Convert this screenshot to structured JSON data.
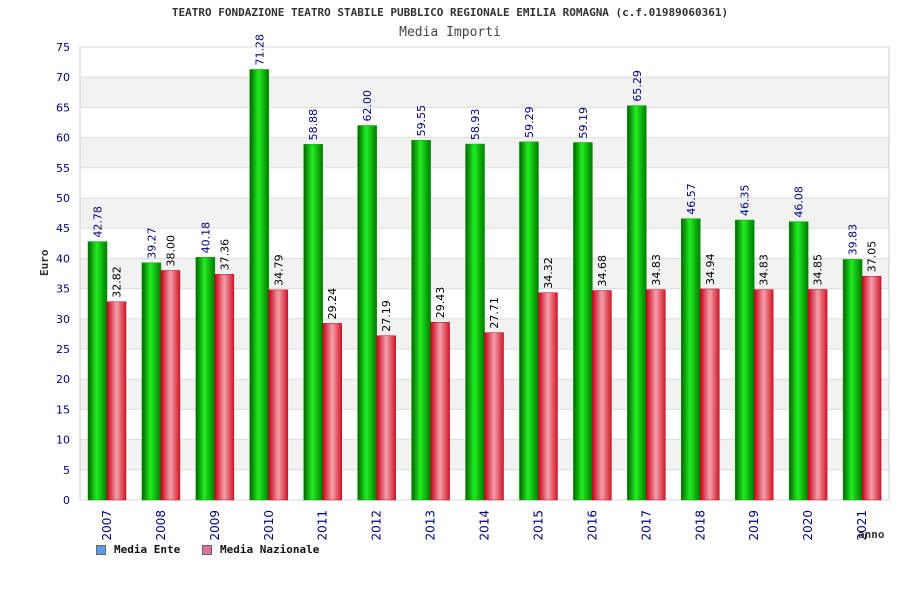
{
  "header": {
    "title": "TEATRO FONDAZIONE TEATRO STABILE PUBBLICO REGIONALE EMILIA ROMAGNA (c.f.01989060361)",
    "subtitle": "Media Importi"
  },
  "colors": {
    "ente": "#00c000",
    "nazionale": "#e8303c",
    "axis_text": "#000080",
    "legend_ente": "#5a9be6",
    "legend_nazionale": "#e070a0"
  },
  "chart_data": {
    "type": "bar",
    "title": "Media Importi",
    "xlabel": "anno",
    "ylabel": "Euro",
    "ylim": [
      0,
      75
    ],
    "yticks": [
      0,
      5,
      10,
      15,
      20,
      25,
      30,
      35,
      40,
      45,
      50,
      55,
      60,
      65,
      70,
      75
    ],
    "grid": true,
    "legend_position": "bottom-left",
    "categories": [
      "2007",
      "2008",
      "2009",
      "2010",
      "2011",
      "2012",
      "2013",
      "2014",
      "2015",
      "2016",
      "2017",
      "2018",
      "2019",
      "2020",
      "2021"
    ],
    "series": [
      {
        "name": "Media Ente",
        "values": [
          42.78,
          39.27,
          40.18,
          71.28,
          58.88,
          62.0,
          59.55,
          58.93,
          59.29,
          59.19,
          65.29,
          46.57,
          46.35,
          46.08,
          39.83
        ],
        "labels": [
          "42.78",
          "39.27",
          "40.18",
          "71.28",
          "58.88",
          "62.00",
          "59.55",
          "58.93",
          "59.29",
          "59.19",
          "65.29",
          "46.57",
          "46.35",
          "46.08",
          "39.83"
        ]
      },
      {
        "name": "Media Nazionale",
        "values": [
          32.82,
          38.0,
          37.36,
          34.79,
          29.24,
          27.19,
          29.43,
          27.71,
          34.32,
          34.68,
          34.83,
          34.94,
          34.83,
          34.85,
          37.05
        ],
        "labels": [
          "32.82",
          "38.00",
          "37.36",
          "34.79",
          "29.24",
          "27.19",
          "29.43",
          "27.71",
          "34.32",
          "34.68",
          "34.83",
          "34.94",
          "34.83",
          "34.85",
          "37.05"
        ]
      }
    ]
  }
}
